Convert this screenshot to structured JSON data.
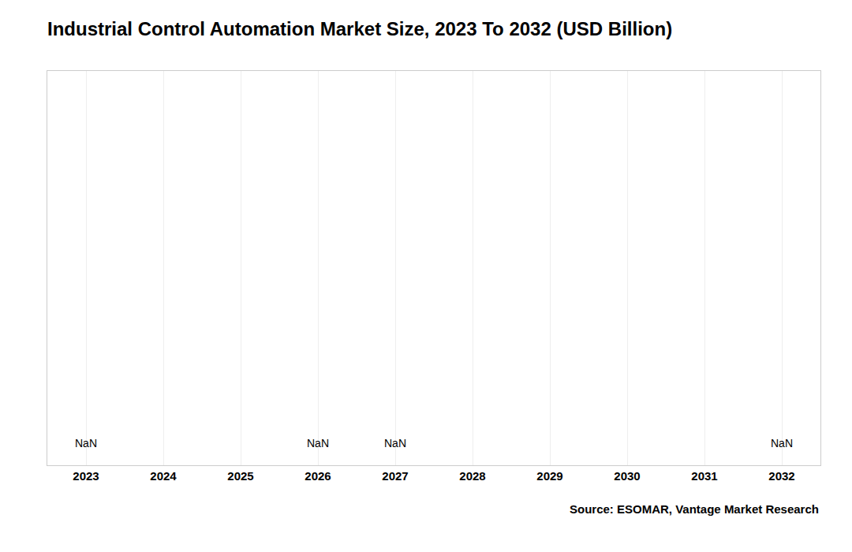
{
  "chart_data": {
    "type": "bar",
    "title": "Industrial Control Automation Market Size, 2023 To 2032 (USD Billion)",
    "categories": [
      "2023",
      "2024",
      "2025",
      "2026",
      "2027",
      "2028",
      "2029",
      "2030",
      "2031",
      "2032"
    ],
    "values": [
      null,
      null,
      null,
      null,
      null,
      null,
      null,
      null,
      null,
      null
    ],
    "annotations": [
      {
        "category": "2023",
        "text": "NaN"
      },
      {
        "category": "2026",
        "text": "NaN"
      },
      {
        "category": "2027",
        "text": "NaN"
      },
      {
        "category": "2032",
        "text": "NaN"
      }
    ],
    "source": "Source: ESOMAR, Vantage Market Research",
    "ylim": [
      0,
      1
    ],
    "yticks": [],
    "tick_labels": "x",
    "grid": true
  }
}
